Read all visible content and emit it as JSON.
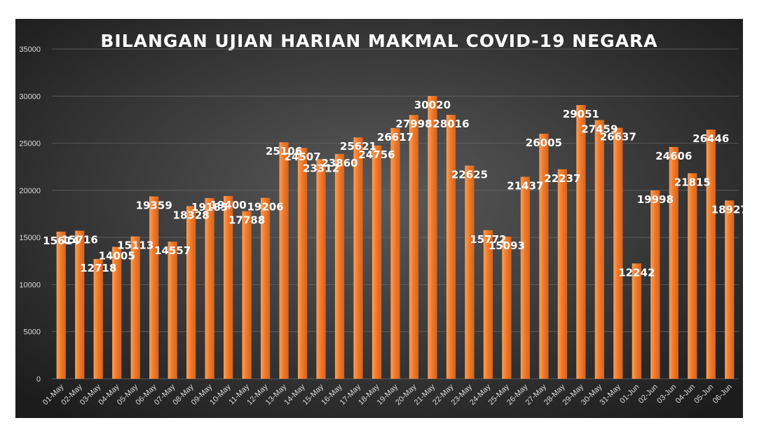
{
  "chart_data": {
    "type": "bar",
    "title": "BILANGAN UJIAN HARIAN MAKMAL COVID-19 NEGARA",
    "xlabel": "",
    "ylabel": "",
    "ylim": [
      0,
      35000
    ],
    "yticks": [
      "0",
      "5000",
      "10000",
      "15000",
      "20000",
      "25000",
      "30000",
      "35000"
    ],
    "grid": true,
    "legend": "none",
    "colors": {
      "bar": "#f07a2a",
      "bar_light": "#f6a15e",
      "background_center": "#5a5a5a",
      "background_edge": "#1c1c1c"
    },
    "categories": [
      "01-May",
      "02-May",
      "03-May",
      "04-May",
      "05-May",
      "06-May",
      "07-May",
      "08-May",
      "09-May",
      "10-May",
      "11-May",
      "12-May",
      "13-May",
      "14-May",
      "15-May",
      "16-May",
      "17-May",
      "18-May",
      "19-May",
      "20-May",
      "21-May",
      "22-May",
      "23-May",
      "24-May",
      "25-May",
      "26-May",
      "27-May",
      "28-May",
      "29-May",
      "30-May",
      "31-May",
      "01-Jun",
      "02-Jun",
      "03-Jun",
      "04-Jun",
      "05-Jun",
      "06-Jun"
    ],
    "values": [
      15614,
      15716,
      12718,
      14005,
      15113,
      19359,
      14557,
      18328,
      19185,
      19400,
      17788,
      19206,
      25106,
      24507,
      23312,
      23860,
      25621,
      24756,
      26617,
      27998,
      30020,
      28016,
      22625,
      15772,
      15093,
      21437,
      26005,
      22237,
      29051,
      27459,
      26637,
      12242,
      19998,
      24606,
      21815,
      26446,
      18927
    ],
    "labels": [
      "15614",
      "15716",
      "12718",
      "14005",
      "15113",
      "19359",
      "14557",
      "18328",
      "19185",
      "19400",
      "17788",
      "19206",
      "25106",
      "24507",
      "23312",
      "23860",
      "25621",
      "24756",
      "26617",
      "27998",
      "30020",
      "28016",
      "22625",
      "15772",
      "15093",
      "21437",
      "26005",
      "22237",
      "29051",
      "27459",
      "26637",
      "12242",
      "19998",
      "24606",
      "21815",
      "26446",
      "18927"
    ]
  }
}
